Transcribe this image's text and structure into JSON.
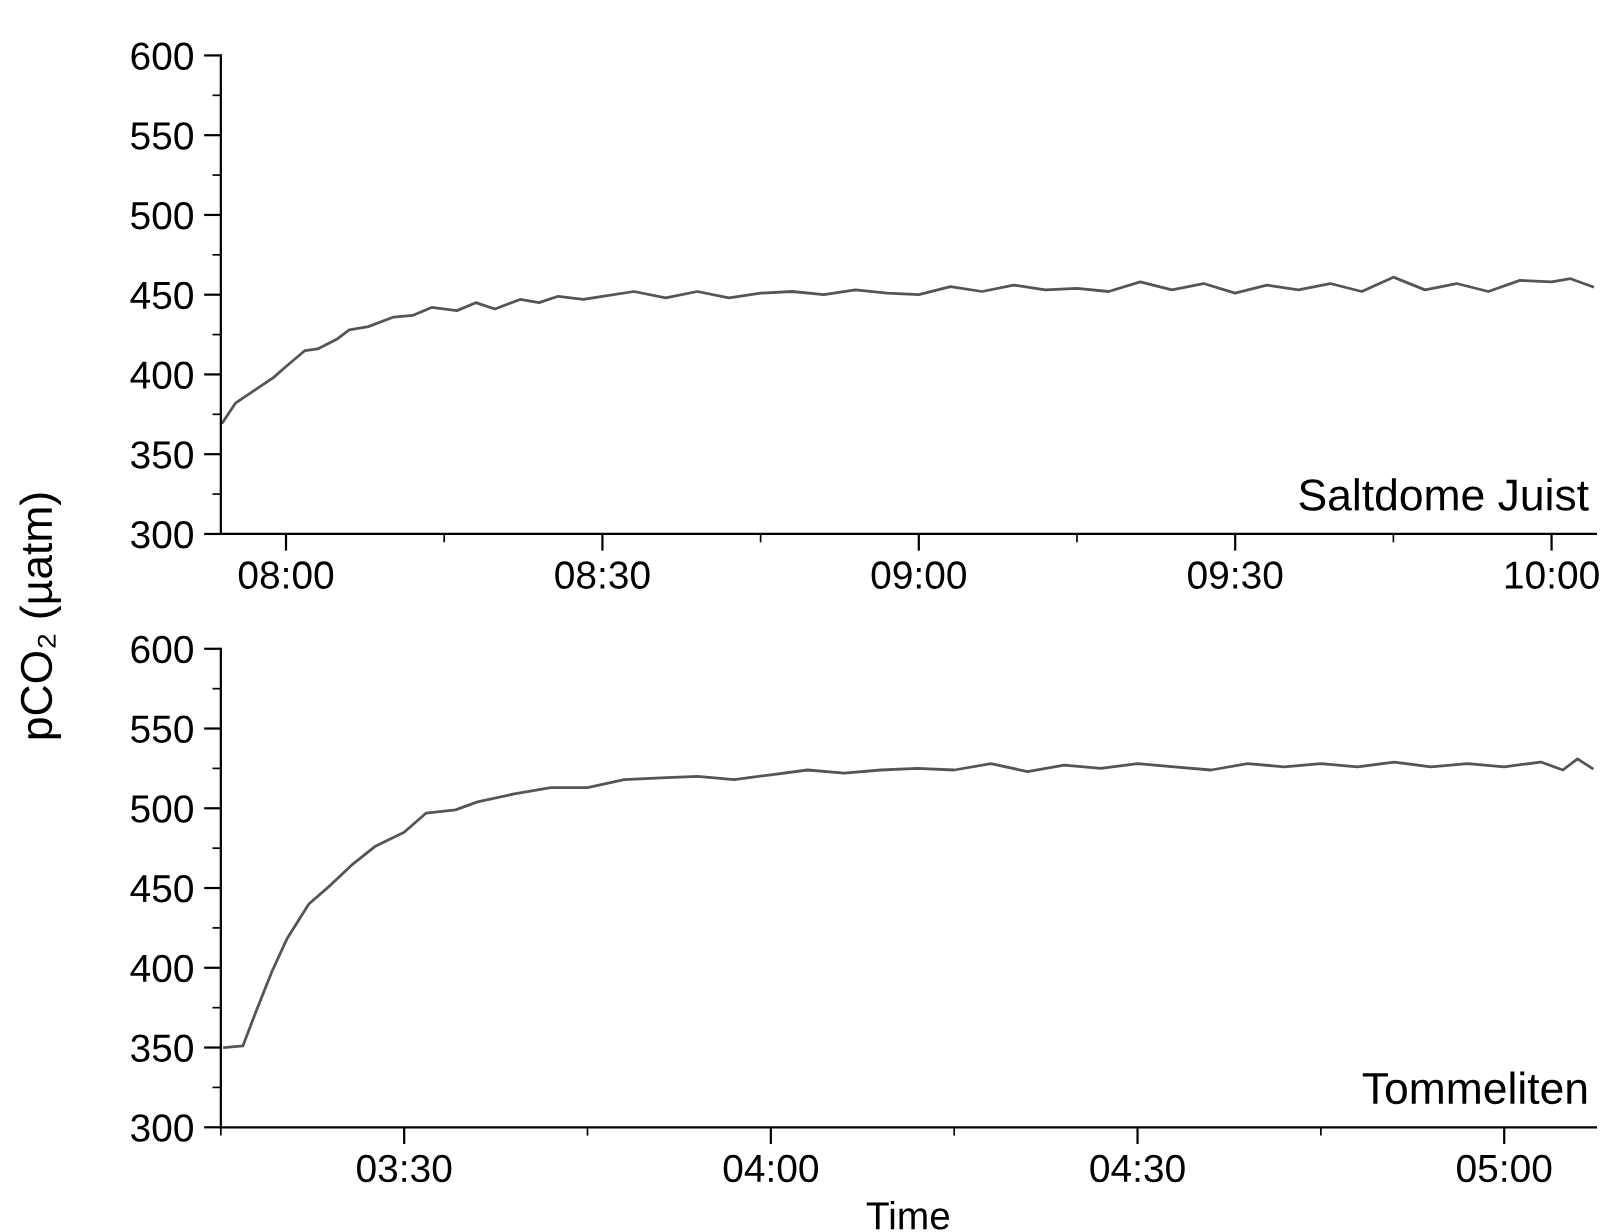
{
  "chart_data": [
    {
      "type": "line",
      "title": "Saltdome Juist",
      "ylabel": "pCO₂ (µatm)",
      "xlim": [
        7.897,
        10.07
      ],
      "ylim": [
        300,
        600
      ],
      "xticks": [
        {
          "value": 8.0,
          "label": "08:00"
        },
        {
          "value": 8.25,
          "label": null
        },
        {
          "value": 8.5,
          "label": "08:30"
        },
        {
          "value": 8.75,
          "label": null
        },
        {
          "value": 9.0,
          "label": "09:00"
        },
        {
          "value": 9.25,
          "label": null
        },
        {
          "value": 9.5,
          "label": "09:30"
        },
        {
          "value": 9.75,
          "label": null
        },
        {
          "value": 10.0,
          "label": "10:00"
        }
      ],
      "yticks": [
        300,
        {
          "value": 325,
          "label": null
        },
        350,
        {
          "value": 375,
          "label": null
        },
        400,
        {
          "value": 425,
          "label": null
        },
        450,
        {
          "value": 475,
          "label": null
        },
        500,
        {
          "value": 525,
          "label": null
        },
        550,
        {
          "value": 575,
          "label": null
        },
        600
      ],
      "grid": false,
      "legend": false,
      "marker": "none",
      "line_style": "solid",
      "series": [
        {
          "color": "#555555",
          "x": [
            7.9,
            7.92,
            7.95,
            7.98,
            8.0,
            8.03,
            8.05,
            8.08,
            8.1,
            8.13,
            8.17,
            8.2,
            8.23,
            8.27,
            8.3,
            8.33,
            8.37,
            8.4,
            8.43,
            8.47,
            8.5,
            8.55,
            8.6,
            8.65,
            8.7,
            8.75,
            8.8,
            8.85,
            8.9,
            8.95,
            9.0,
            9.05,
            9.1,
            9.15,
            9.2,
            9.25,
            9.3,
            9.35,
            9.4,
            9.45,
            9.5,
            9.55,
            9.6,
            9.65,
            9.7,
            9.75,
            9.8,
            9.85,
            9.9,
            9.95,
            10.0,
            10.03,
            10.065
          ],
          "values": [
            370,
            382,
            390,
            398,
            405,
            415,
            416,
            422,
            428,
            430,
            436,
            437,
            442,
            440,
            445,
            441,
            447,
            445,
            449,
            447,
            449,
            452,
            448,
            452,
            448,
            451,
            452,
            450,
            453,
            451,
            450,
            455,
            452,
            456,
            453,
            454,
            452,
            458,
            453,
            457,
            451,
            456,
            453,
            457,
            452,
            461,
            453,
            457,
            452,
            459,
            458,
            460,
            455
          ]
        }
      ]
    },
    {
      "type": "line",
      "title": "Tommeliten",
      "xlabel": "Time",
      "xlim": [
        3.25,
        5.125
      ],
      "ylim": [
        300,
        600
      ],
      "xticks": [
        {
          "value": 3.25,
          "label": null
        },
        {
          "value": 3.5,
          "label": "03:30"
        },
        {
          "value": 3.75,
          "label": null
        },
        {
          "value": 4.0,
          "label": "04:00"
        },
        {
          "value": 4.25,
          "label": null
        },
        {
          "value": 4.5,
          "label": "04:30"
        },
        {
          "value": 4.75,
          "label": null
        },
        {
          "value": 5.0,
          "label": "05:00"
        }
      ],
      "yticks": [
        300,
        {
          "value": 325,
          "label": null
        },
        350,
        {
          "value": 375,
          "label": null
        },
        400,
        {
          "value": 425,
          "label": null
        },
        450,
        {
          "value": 475,
          "label": null
        },
        500,
        {
          "value": 525,
          "label": null
        },
        550,
        {
          "value": 575,
          "label": null
        },
        600
      ],
      "grid": false,
      "legend": false,
      "marker": "none",
      "line_style": "solid",
      "series": [
        {
          "color": "#555555",
          "x": [
            3.255,
            3.28,
            3.3,
            3.32,
            3.34,
            3.37,
            3.4,
            3.43,
            3.46,
            3.5,
            3.53,
            3.57,
            3.6,
            3.65,
            3.7,
            3.75,
            3.8,
            3.85,
            3.9,
            3.95,
            4.0,
            4.05,
            4.1,
            4.15,
            4.2,
            4.25,
            4.3,
            4.35,
            4.4,
            4.45,
            4.5,
            4.55,
            4.6,
            4.65,
            4.7,
            4.75,
            4.8,
            4.85,
            4.9,
            4.95,
            5.0,
            5.05,
            5.08,
            5.1,
            5.12
          ],
          "values": [
            350,
            351,
            375,
            398,
            418,
            440,
            452,
            465,
            476,
            485,
            497,
            499,
            504,
            509,
            513,
            513,
            518,
            519,
            520,
            518,
            521,
            524,
            522,
            524,
            525,
            524,
            528,
            523,
            527,
            525,
            528,
            526,
            524,
            528,
            526,
            528,
            526,
            529,
            526,
            528,
            526,
            529,
            524,
            531,
            525
          ]
        }
      ]
    }
  ]
}
